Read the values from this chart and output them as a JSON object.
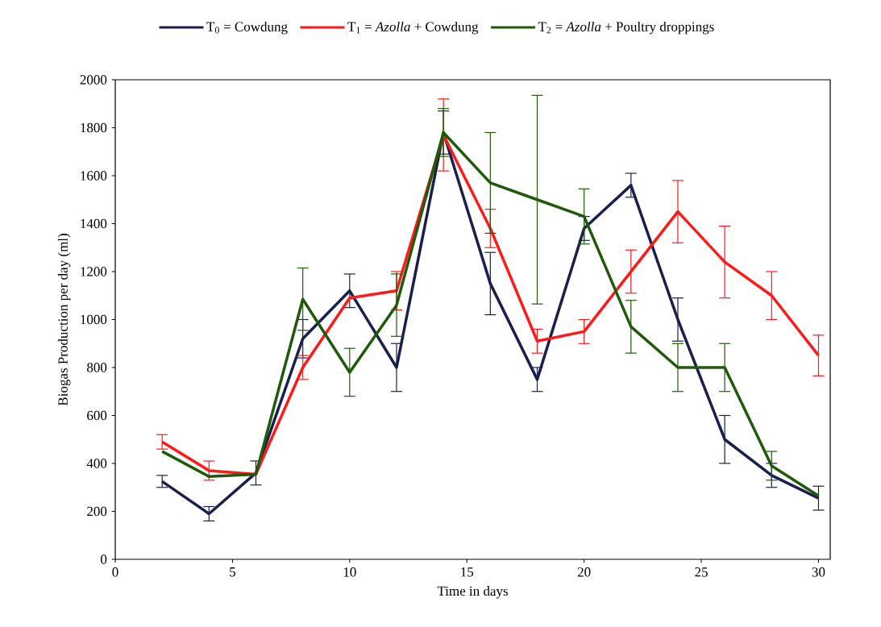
{
  "chart_data": {
    "type": "line",
    "xlabel": "Time in days",
    "ylabel": "Biogas Production per day (ml)",
    "x": [
      2,
      4,
      6,
      8,
      10,
      12,
      14,
      16,
      18,
      20,
      22,
      24,
      26,
      28,
      30
    ],
    "xlim": [
      0,
      30.5
    ],
    "xticks": [
      0,
      5,
      10,
      15,
      20,
      25,
      30
    ],
    "ylim": [
      0,
      2000
    ],
    "yticks": [
      0,
      200,
      400,
      600,
      800,
      1000,
      1200,
      1400,
      1600,
      1800,
      2000
    ],
    "legend": "top",
    "marker": "none",
    "line_style": "solid",
    "series": [
      {
        "name": "T$_{0}$ = Cowdung",
        "color": "#1a1f4e",
        "values": [
          325,
          190,
          360,
          920,
          1120,
          800,
          1780,
          1150,
          750,
          1380,
          1560,
          1000,
          500,
          350,
          255
        ],
        "errors": [
          25,
          30,
          50,
          80,
          70,
          100,
          90,
          130,
          50,
          50,
          50,
          90,
          100,
          50,
          50
        ]
      },
      {
        "name": "T$_{1}$ = *Azolla* + Cowdung",
        "color": "#ff1a1a",
        "values": [
          490,
          370,
          355,
          800,
          1090,
          1120,
          1770,
          1380,
          910,
          950,
          1200,
          1450,
          1240,
          1100,
          850
        ],
        "errors": [
          30,
          40,
          null,
          50,
          null,
          80,
          150,
          80,
          50,
          50,
          90,
          130,
          150,
          100,
          85
        ]
      },
      {
        "name": "T$_{2}$ = *Azolla* + Poultry droppings",
        "color": "#1f5a0a",
        "values": [
          450,
          345,
          355,
          1085,
          780,
          1060,
          1780,
          1570,
          1500,
          1430,
          970,
          800,
          800,
          390,
          265
        ],
        "errors": [
          null,
          null,
          null,
          130,
          100,
          130,
          100,
          210,
          435,
          115,
          110,
          100,
          100,
          60,
          null
        ]
      }
    ]
  }
}
